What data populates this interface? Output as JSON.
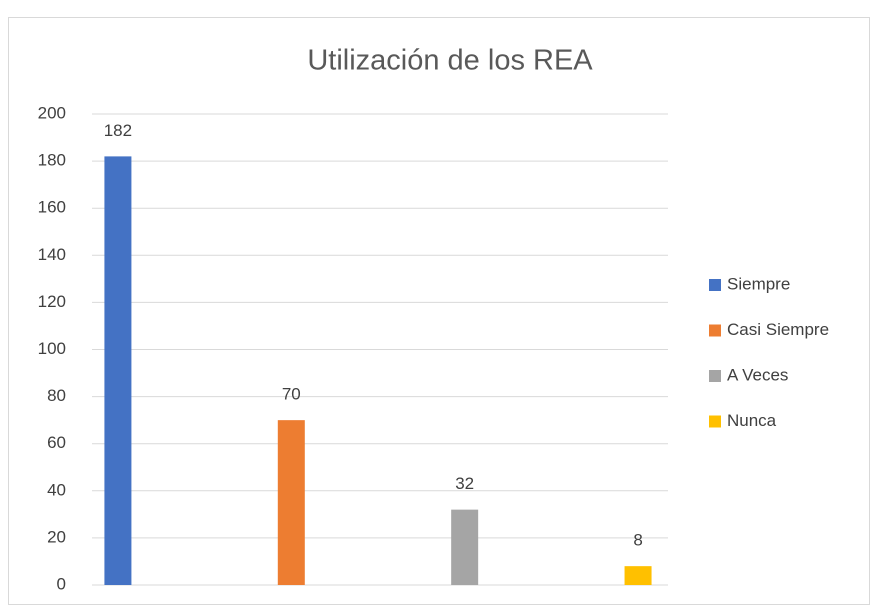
{
  "chart_data": {
    "type": "bar",
    "title": "Utilización de los REA",
    "categories": [
      null
    ],
    "series": [
      {
        "name": "Siempre",
        "color": "#4472c4",
        "values": [
          182
        ]
      },
      {
        "name": "Casi Siempre",
        "color": "#ed7d31",
        "values": [
          70
        ]
      },
      {
        "name": "A Veces",
        "color": "#a5a5a5",
        "values": [
          32
        ]
      },
      {
        "name": "Nunca",
        "color": "#ffc000",
        "values": [
          8
        ]
      }
    ],
    "ylim": [
      0,
      200
    ],
    "yticks": [
      0,
      20,
      40,
      60,
      80,
      100,
      120,
      140,
      160,
      180,
      200
    ],
    "grid": true,
    "legend": "right"
  }
}
